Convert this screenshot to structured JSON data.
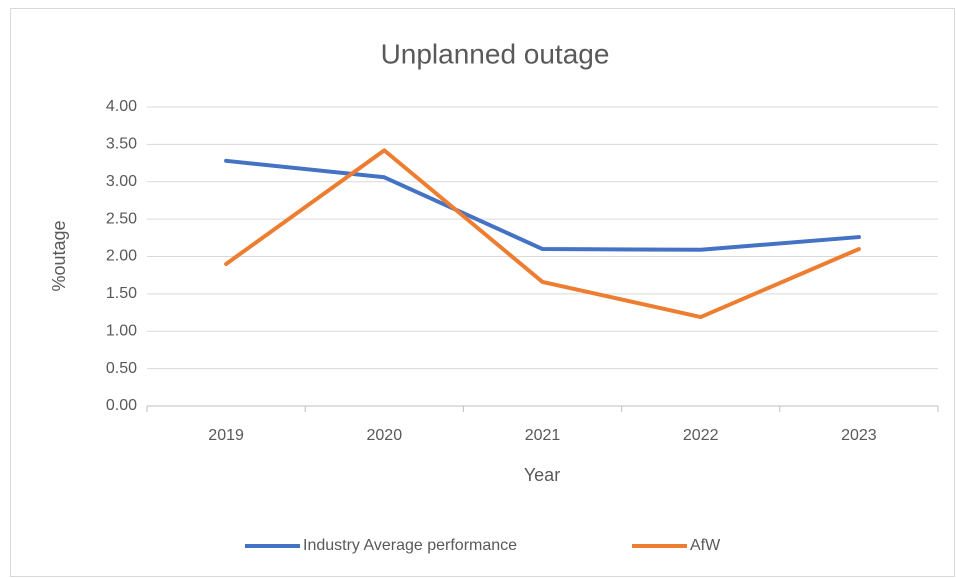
{
  "chart_data": {
    "type": "line",
    "title": "Unplanned outage",
    "x_label": "Year",
    "y_label": "%outage",
    "categories": [
      "2019",
      "2020",
      "2021",
      "2022",
      "2023"
    ],
    "series": [
      {
        "name": "Industry Average performance",
        "color": "#4472c4",
        "values": [
          3.28,
          3.06,
          2.1,
          2.09,
          2.26
        ]
      },
      {
        "name": "AfW",
        "color": "#ed7d31",
        "values": [
          1.9,
          3.42,
          1.66,
          1.19,
          2.1
        ]
      }
    ],
    "ylim": [
      0,
      4
    ],
    "yticks": [
      {
        "value": 0,
        "label": "0.00"
      },
      {
        "value": 0.5,
        "label": "0.50"
      },
      {
        "value": 1,
        "label": "1.00"
      },
      {
        "value": 1.5,
        "label": "1.50"
      },
      {
        "value": 2,
        "label": "2.00"
      },
      {
        "value": 2.5,
        "label": "2.50"
      },
      {
        "value": 3,
        "label": "3.00"
      },
      {
        "value": 3.5,
        "label": "3.50"
      },
      {
        "value": 4,
        "label": "4.00"
      }
    ],
    "grid": true,
    "legend": "bottom"
  }
}
